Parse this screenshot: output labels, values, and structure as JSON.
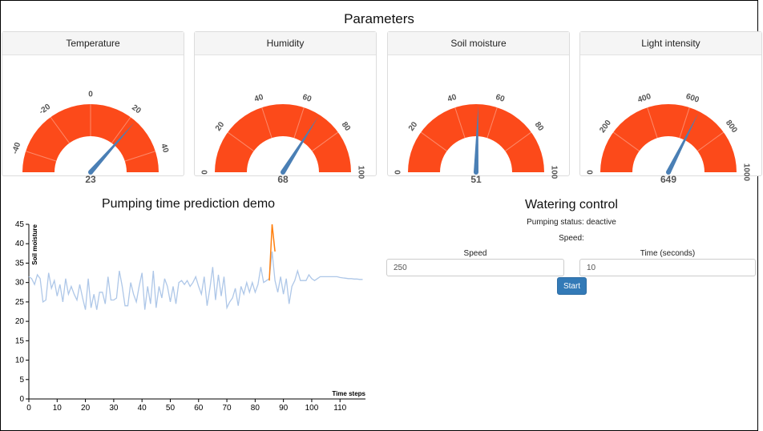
{
  "parameters_title": "Parameters",
  "colors": {
    "gauge_fill": "#fc4a1a",
    "needle": "#4a7fb5",
    "line": "#aec7e8",
    "prediction": "#ff7f0e",
    "button": "#337ab7"
  },
  "gauges": [
    {
      "label": "Temperature",
      "value": 23,
      "value_text": "23",
      "min": -50,
      "max": 50,
      "ticks": [
        "-40",
        "-20",
        "0",
        "20",
        "40"
      ],
      "tick_values": [
        -40,
        -20,
        0,
        20,
        40
      ],
      "end_labels": []
    },
    {
      "label": "Humidity",
      "value": 68,
      "value_text": "68",
      "min": 0,
      "max": 100,
      "ticks": [
        "0",
        "20",
        "40",
        "60",
        "80",
        "100"
      ],
      "tick_values": [
        0,
        20,
        40,
        60,
        80,
        100
      ],
      "end_labels": []
    },
    {
      "label": "Soil moisture",
      "value": 51,
      "value_text": "51",
      "min": 0,
      "max": 100,
      "ticks": [
        "0",
        "20",
        "40",
        "60",
        "80",
        "100"
      ],
      "tick_values": [
        0,
        20,
        40,
        60,
        80,
        100
      ],
      "end_labels": []
    },
    {
      "label": "Light intensity",
      "value": 649,
      "value_text": "649",
      "min": 0,
      "max": 1000,
      "ticks": [
        "0",
        "200",
        "400",
        "600",
        "800",
        "1000"
      ],
      "tick_values": [
        0,
        200,
        400,
        600,
        800,
        1000
      ],
      "end_labels": []
    }
  ],
  "chart_title": "Pumping time prediction demo",
  "chart_data": {
    "type": "line",
    "title": "Pumping time prediction demo",
    "xlabel": "Time steps",
    "ylabel": "Soil moisture",
    "xlim": [
      0,
      119
    ],
    "ylim": [
      0,
      45
    ],
    "xticks": [
      "0",
      "10",
      "20",
      "30",
      "40",
      "50",
      "60",
      "70",
      "80",
      "90",
      "100",
      "110"
    ],
    "yticks": [
      "0",
      "5",
      "10",
      "15",
      "20",
      "25",
      "30",
      "35",
      "40",
      "45"
    ],
    "series": [
      {
        "values": [
          [
            0,
            31.5
          ],
          [
            1,
            31
          ],
          [
            2,
            29.5
          ],
          [
            3,
            32
          ],
          [
            4,
            31
          ],
          [
            5,
            25
          ],
          [
            6,
            25.5
          ],
          [
            7,
            32.5
          ],
          [
            8,
            28.5
          ],
          [
            9,
            30.5
          ],
          [
            10,
            26.5
          ],
          [
            11,
            29.5
          ],
          [
            12,
            25
          ],
          [
            13,
            31
          ],
          [
            14,
            27
          ],
          [
            15,
            29
          ],
          [
            16,
            27
          ],
          [
            17,
            25.5
          ],
          [
            18,
            29.5
          ],
          [
            19,
            26
          ],
          [
            20,
            23
          ],
          [
            21,
            31
          ],
          [
            22,
            23.5
          ],
          [
            23,
            27
          ],
          [
            24,
            23
          ],
          [
            25,
            27.5
          ],
          [
            26,
            27.5
          ],
          [
            27,
            24.5
          ],
          [
            28,
            31.5
          ],
          [
            29,
            25.5
          ],
          [
            30,
            25.5
          ],
          [
            31,
            26
          ],
          [
            32,
            33
          ],
          [
            33,
            29
          ],
          [
            34,
            24
          ],
          [
            35,
            24
          ],
          [
            36,
            30
          ],
          [
            37,
            27
          ],
          [
            38,
            25
          ],
          [
            39,
            29
          ],
          [
            40,
            32.5
          ],
          [
            41,
            23
          ],
          [
            42,
            29
          ],
          [
            43,
            24.5
          ],
          [
            44,
            33
          ],
          [
            45,
            23.5
          ],
          [
            46,
            29
          ],
          [
            47,
            26
          ],
          [
            48,
            31
          ],
          [
            49,
            29
          ],
          [
            50,
            25
          ],
          [
            51,
            29
          ],
          [
            52,
            24.5
          ],
          [
            53,
            30
          ],
          [
            54,
            30.5
          ],
          [
            55,
            29.5
          ],
          [
            56,
            30.5
          ],
          [
            57,
            29
          ],
          [
            58,
            30
          ],
          [
            59,
            31.5
          ],
          [
            60,
            29
          ],
          [
            61,
            27
          ],
          [
            62,
            31.5
          ],
          [
            63,
            24
          ],
          [
            64,
            28.5
          ],
          [
            65,
            34
          ],
          [
            66,
            25.5
          ],
          [
            67,
            32
          ],
          [
            68,
            26.5
          ],
          [
            69,
            31.5
          ],
          [
            70,
            23.5
          ],
          [
            71,
            25
          ],
          [
            72,
            26
          ],
          [
            73,
            28.5
          ],
          [
            74,
            24
          ],
          [
            75,
            29
          ],
          [
            76,
            27
          ],
          [
            77,
            30
          ],
          [
            78,
            27.5
          ],
          [
            79,
            30
          ],
          [
            80,
            27.5
          ],
          [
            81,
            29.5
          ],
          [
            82,
            34
          ],
          [
            83,
            30
          ],
          [
            84,
            30.5
          ],
          [
            85,
            31
          ],
          [
            86,
            38
          ],
          [
            87,
            30.5
          ],
          [
            88,
            27.5
          ],
          [
            89,
            31.5
          ],
          [
            90,
            27
          ],
          [
            91,
            31
          ],
          [
            92,
            24.5
          ],
          [
            93,
            29
          ],
          [
            94,
            30.5
          ],
          [
            95,
            33
          ],
          [
            96,
            30.5
          ],
          [
            97,
            30.5
          ],
          [
            98,
            30.5
          ],
          [
            99,
            32
          ],
          [
            100,
            31
          ],
          [
            101,
            30.5
          ],
          [
            102,
            31
          ],
          [
            103,
            31.5
          ],
          [
            104,
            31.5
          ],
          [
            105,
            31.5
          ],
          [
            106,
            31.5
          ],
          [
            107,
            31.5
          ],
          [
            108,
            31.5
          ],
          [
            109,
            31.5
          ],
          [
            110,
            31.3
          ],
          [
            111,
            31.2
          ],
          [
            112,
            31.1
          ],
          [
            113,
            31
          ],
          [
            114,
            31
          ],
          [
            115,
            30.9
          ],
          [
            116,
            30.9
          ],
          [
            117,
            30.8
          ],
          [
            118,
            30.8
          ]
        ]
      },
      {
        "values": [
          [
            85,
            30.5
          ],
          [
            86,
            45
          ],
          [
            87,
            38
          ]
        ]
      }
    ]
  },
  "watering": {
    "title": "Watering control",
    "status_text": "Pumping status: deactive",
    "speed_text": "Speed:",
    "speed_label": "Speed",
    "speed_value": "250",
    "time_label": "Time (seconds)",
    "time_value": "10",
    "start_label": "Start"
  }
}
